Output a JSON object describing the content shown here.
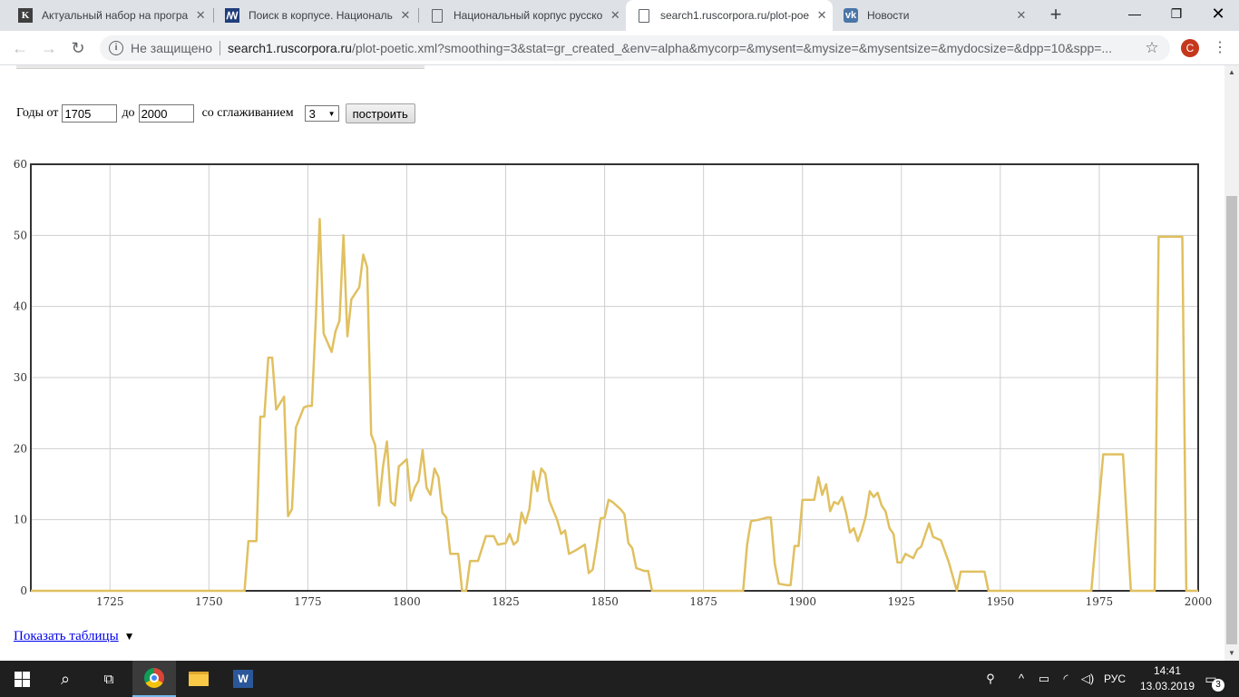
{
  "browser": {
    "tabs": [
      {
        "title": "Актуальный набор на програ",
        "icon": "k-favicon"
      },
      {
        "title": "Поиск в корпусе. Националь",
        "icon": "nkrya-favicon"
      },
      {
        "title": "Национальный корпус русско",
        "icon": "document-icon"
      },
      {
        "title": "search1.ruscorpora.ru/plot-poe",
        "icon": "document-icon",
        "active": true
      },
      {
        "title": "Новости",
        "icon": "vk-favicon"
      }
    ],
    "security_label": "Не защищено",
    "url_host": "search1.ruscorpora.ru",
    "url_path": "/plot-poetic.xml?smoothing=3&stat=gr_created_&env=alpha&mycorp=&mysent=&mysize=&mysentsize=&mydocsize=&dpp=10&spp=...",
    "avatar_letter": "С"
  },
  "form": {
    "label_years_from": "Годы от",
    "year_from": "1705",
    "label_to": "до",
    "year_to": "2000",
    "label_smoothing": "со сглаживанием",
    "smoothing_value": "3",
    "build_button": "построить"
  },
  "show_tables_link": "Показать таблицы",
  "show_tables_arrow": "▼",
  "chart_data": {
    "type": "line",
    "title": "",
    "xlabel": "",
    "ylabel": "",
    "xlim": [
      1705,
      2000
    ],
    "ylim": [
      0,
      60
    ],
    "x_ticks": [
      1725,
      1750,
      1775,
      1800,
      1825,
      1850,
      1875,
      1900,
      1925,
      1950,
      1975,
      2000
    ],
    "y_ticks": [
      0,
      10,
      20,
      30,
      40,
      50,
      60
    ],
    "grid": true,
    "line_color": "#e0c060",
    "points": [
      [
        1705,
        0
      ],
      [
        1759,
        0
      ],
      [
        1760,
        7
      ],
      [
        1762,
        7
      ],
      [
        1763,
        24.5
      ],
      [
        1764,
        24.5
      ],
      [
        1765,
        32.8
      ],
      [
        1766,
        32.8
      ],
      [
        1767,
        25.5
      ],
      [
        1769,
        27.3
      ],
      [
        1770,
        10.5
      ],
      [
        1771,
        11.5
      ],
      [
        1772,
        23
      ],
      [
        1774,
        25.8
      ],
      [
        1775,
        26
      ],
      [
        1776,
        26
      ],
      [
        1777,
        38
      ],
      [
        1778,
        52.3
      ],
      [
        1779,
        36.2
      ],
      [
        1781,
        33.6
      ],
      [
        1782,
        36.5
      ],
      [
        1783,
        38
      ],
      [
        1784,
        50
      ],
      [
        1785,
        35.8
      ],
      [
        1786,
        41
      ],
      [
        1788,
        42.7
      ],
      [
        1789,
        47.3
      ],
      [
        1790,
        45.5
      ],
      [
        1791,
        22
      ],
      [
        1792,
        20.5
      ],
      [
        1793,
        12
      ],
      [
        1794,
        17.5
      ],
      [
        1795,
        21
      ],
      [
        1796,
        12.5
      ],
      [
        1797,
        12
      ],
      [
        1798,
        17.5
      ],
      [
        1800,
        18.5
      ],
      [
        1801,
        12.7
      ],
      [
        1802,
        14.5
      ],
      [
        1803,
        15.5
      ],
      [
        1804,
        19.8
      ],
      [
        1805,
        14.5
      ],
      [
        1806,
        13.5
      ],
      [
        1807,
        17.2
      ],
      [
        1808,
        16
      ],
      [
        1809,
        11
      ],
      [
        1810,
        10.3
      ],
      [
        1811,
        5.2
      ],
      [
        1813,
        5.2
      ],
      [
        1814,
        0
      ],
      [
        1815,
        0
      ],
      [
        1816,
        4.2
      ],
      [
        1818,
        4.2
      ],
      [
        1820,
        7.7
      ],
      [
        1822,
        7.7
      ],
      [
        1823,
        6.5
      ],
      [
        1825,
        6.7
      ],
      [
        1826,
        8
      ],
      [
        1827,
        6.5
      ],
      [
        1828,
        7
      ],
      [
        1829,
        11
      ],
      [
        1830,
        9.5
      ],
      [
        1831,
        11.5
      ],
      [
        1832,
        16.8
      ],
      [
        1833,
        14
      ],
      [
        1834,
        17.2
      ],
      [
        1835,
        16.5
      ],
      [
        1836,
        12.7
      ],
      [
        1838,
        10
      ],
      [
        1839,
        8
      ],
      [
        1840,
        8.5
      ],
      [
        1841,
        5.2
      ],
      [
        1843,
        5.8
      ],
      [
        1845,
        6.5
      ],
      [
        1846,
        2.5
      ],
      [
        1847,
        3
      ],
      [
        1848,
        6.5
      ],
      [
        1849,
        10.2
      ],
      [
        1850,
        10.3
      ],
      [
        1851,
        12.8
      ],
      [
        1852,
        12.5
      ],
      [
        1854,
        11.5
      ],
      [
        1855,
        10.8
      ],
      [
        1856,
        6.7
      ],
      [
        1857,
        6
      ],
      [
        1858,
        3.2
      ],
      [
        1859,
        3
      ],
      [
        1860,
        2.8
      ],
      [
        1861,
        2.8
      ],
      [
        1862,
        0
      ],
      [
        1885,
        0
      ],
      [
        1886,
        6.5
      ],
      [
        1887,
        9.8
      ],
      [
        1889,
        10
      ],
      [
        1891,
        10.3
      ],
      [
        1892,
        10.3
      ],
      [
        1893,
        3.8
      ],
      [
        1894,
        1
      ],
      [
        1896,
        0.8
      ],
      [
        1897,
        0.8
      ],
      [
        1898,
        6.3
      ],
      [
        1899,
        6.3
      ],
      [
        1900,
        12.8
      ],
      [
        1903,
        12.8
      ],
      [
        1904,
        16
      ],
      [
        1905,
        13.5
      ],
      [
        1906,
        15
      ],
      [
        1907,
        11.2
      ],
      [
        1908,
        12.5
      ],
      [
        1909,
        12.2
      ],
      [
        1910,
        13.2
      ],
      [
        1911,
        11
      ],
      [
        1912,
        8.2
      ],
      [
        1913,
        8.8
      ],
      [
        1914,
        7
      ],
      [
        1915,
        8.5
      ],
      [
        1916,
        10.5
      ],
      [
        1917,
        14
      ],
      [
        1918,
        13.2
      ],
      [
        1919,
        13.8
      ],
      [
        1920,
        12
      ],
      [
        1921,
        11.2
      ],
      [
        1922,
        8.8
      ],
      [
        1923,
        8
      ],
      [
        1924,
        4
      ],
      [
        1925,
        4
      ],
      [
        1926,
        5.2
      ],
      [
        1928,
        4.6
      ],
      [
        1929,
        5.8
      ],
      [
        1930,
        6.2
      ],
      [
        1932,
        9.5
      ],
      [
        1933,
        7.6
      ],
      [
        1935,
        7.1
      ],
      [
        1937,
        4
      ],
      [
        1939,
        0
      ],
      [
        1940,
        2.7
      ],
      [
        1946,
        2.7
      ],
      [
        1947,
        0
      ],
      [
        1973,
        0
      ],
      [
        1976,
        19.2
      ],
      [
        1981,
        19.2
      ],
      [
        1983,
        0
      ],
      [
        1989,
        0
      ],
      [
        1990,
        49.8
      ],
      [
        1996,
        49.8
      ],
      [
        1997,
        0
      ],
      [
        2000,
        0
      ]
    ]
  },
  "taskbar": {
    "language": "РУС",
    "time": "14:41",
    "date": "13.03.2019",
    "notification_count": "3"
  }
}
